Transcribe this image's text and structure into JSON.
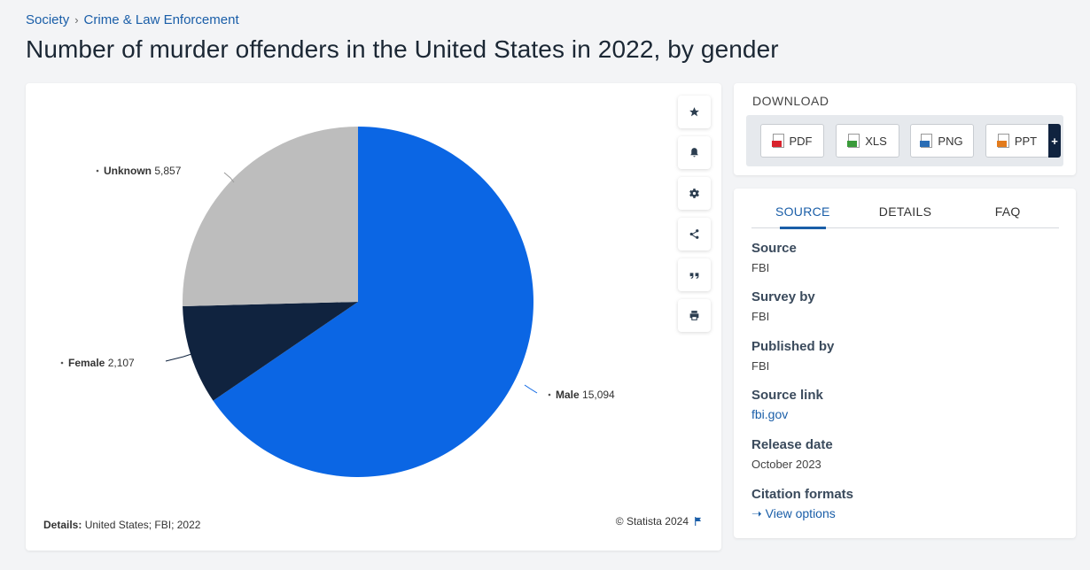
{
  "breadcrumb": {
    "items": [
      "Society",
      "Crime & Law Enforcement"
    ],
    "separator": "›"
  },
  "page_title": "Number of murder offenders in the United States in 2022, by gender",
  "chart_data": {
    "type": "pie",
    "title": "",
    "slices": [
      {
        "label": "Male",
        "value": 15094,
        "display": "15,094",
        "color": "#0b66e4"
      },
      {
        "label": "Female",
        "value": 2107,
        "display": "2,107",
        "color": "#10233f"
      },
      {
        "label": "Unknown",
        "value": 5857,
        "display": "5,857",
        "color": "#bdbdbd"
      }
    ]
  },
  "chart_footer": {
    "details_label": "Details:",
    "details_text": "United States; FBI; 2022",
    "copyright": "© Statista 2024"
  },
  "tools": [
    {
      "name": "star-icon"
    },
    {
      "name": "bell-icon"
    },
    {
      "name": "gear-icon"
    },
    {
      "name": "share-icon"
    },
    {
      "name": "quote-icon"
    },
    {
      "name": "print-icon"
    }
  ],
  "download": {
    "title": "DOWNLOAD",
    "buttons": [
      {
        "label": "PDF",
        "color": "#d9232d"
      },
      {
        "label": "XLS",
        "color": "#3a9b3a"
      },
      {
        "label": "PNG",
        "color": "#2a6db5"
      },
      {
        "label": "PPT",
        "color": "#e37b1c"
      }
    ],
    "more_label": "+"
  },
  "source_panel": {
    "tabs": [
      "SOURCE",
      "DETAILS",
      "FAQ"
    ],
    "active_tab": "SOURCE",
    "source_label": "Source",
    "source_value": "FBI",
    "survey_label": "Survey by",
    "survey_value": "FBI",
    "published_label": "Published by",
    "published_value": "FBI",
    "link_label": "Source link",
    "link_value": "fbi.gov",
    "release_label": "Release date",
    "release_value": "October 2023",
    "citation_label": "Citation formats",
    "citation_link": "View options"
  }
}
